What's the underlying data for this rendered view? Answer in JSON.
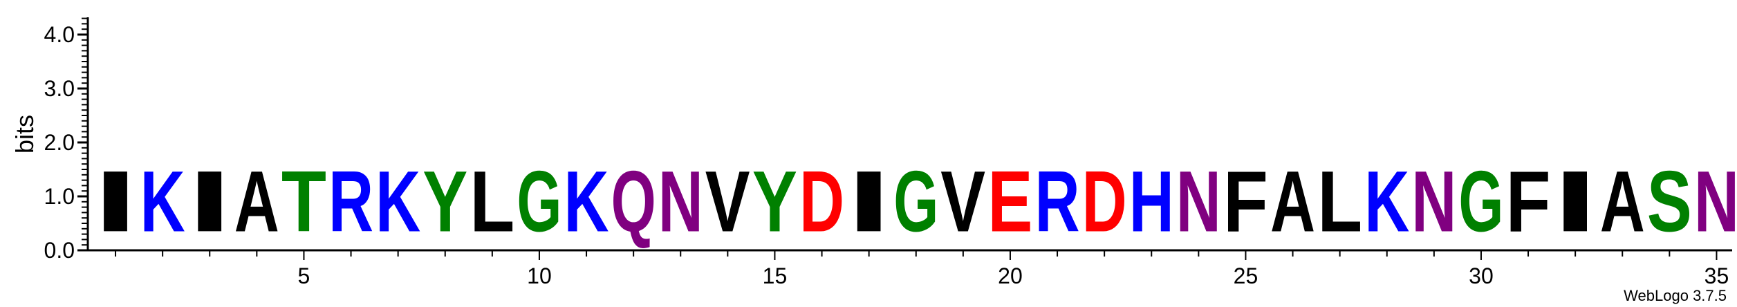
{
  "chart_data": {
    "type": "sequence-logo",
    "ylabel": "bits",
    "ylim": [
      0,
      4.3
    ],
    "yticks": [
      "0.0",
      "1.0",
      "2.0",
      "3.0",
      "4.0"
    ],
    "yticks_values": [
      0,
      1,
      2,
      3,
      4
    ],
    "xticks": [
      "5",
      "10",
      "15",
      "20",
      "25",
      "30",
      "35"
    ],
    "xticks_values": [
      5,
      10,
      15,
      20,
      25,
      30,
      35
    ],
    "positions": [
      1,
      2,
      3,
      4,
      5,
      6,
      7,
      8,
      9,
      10,
      11,
      12,
      13,
      14,
      15,
      16,
      17,
      18,
      19,
      20,
      21,
      22,
      23,
      24,
      25,
      26,
      27,
      28,
      29,
      30,
      31,
      32,
      33,
      34,
      35
    ],
    "residues": [
      "I",
      "K",
      "I",
      "A",
      "T",
      "R",
      "K",
      "Y",
      "L",
      "G",
      "K",
      "Q",
      "N",
      "V",
      "Y",
      "D",
      "I",
      "G",
      "V",
      "E",
      "R",
      "D",
      "H",
      "N",
      "F",
      "A",
      "L",
      "K",
      "N",
      "G",
      "F",
      "I",
      "A",
      "S",
      "N"
    ],
    "heights_bits": [
      1.8,
      1.8,
      1.8,
      1.8,
      1.8,
      1.8,
      1.8,
      1.8,
      1.8,
      1.8,
      1.8,
      1.8,
      1.8,
      1.8,
      1.8,
      1.8,
      1.8,
      1.8,
      1.8,
      1.8,
      1.8,
      1.8,
      1.8,
      1.8,
      1.8,
      1.8,
      1.8,
      1.8,
      1.8,
      1.8,
      1.8,
      1.8,
      1.8,
      1.8,
      1.8
    ],
    "residue_colors": {
      "hydrophobic": "#000000",
      "basic": "#0000ff",
      "polar": "#008000",
      "amide": "#800080",
      "acidic": "#ff0000"
    },
    "color_by_residue": {
      "A": "#000000",
      "V": "#000000",
      "L": "#000000",
      "I": "#000000",
      "P": "#000000",
      "W": "#000000",
      "F": "#000000",
      "M": "#000000",
      "K": "#0000ff",
      "R": "#0000ff",
      "H": "#0000ff",
      "G": "#008000",
      "S": "#008000",
      "T": "#008000",
      "Y": "#008000",
      "C": "#008000",
      "Q": "#800080",
      "N": "#800080",
      "D": "#ff0000",
      "E": "#ff0000"
    }
  },
  "credit": "WebLogo 3.7.5"
}
